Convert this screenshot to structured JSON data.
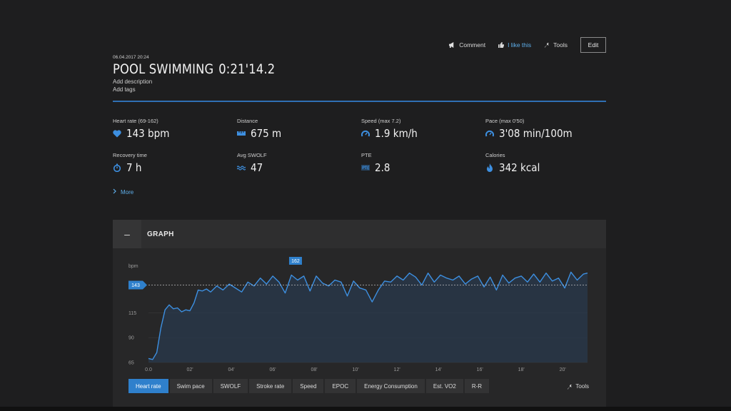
{
  "header": {
    "actions": {
      "comment": "Comment",
      "like": "I like this",
      "tools": "Tools",
      "edit": "Edit"
    },
    "date": "06.04.2017 20:24",
    "title": "POOL SWIMMING",
    "duration": "0:21'14.2",
    "add_description": "Add description",
    "add_tags": "Add tags"
  },
  "stats": [
    {
      "label": "Heart rate  (69-162)",
      "value": "143 bpm",
      "icon": "heart-icon"
    },
    {
      "label": "Distance",
      "value": "675 m",
      "icon": "ruler-icon"
    },
    {
      "label": "Speed  (max  7.2)",
      "value": "1.9 km/h",
      "icon": "speedometer-icon"
    },
    {
      "label": "Pace  (max  0'50)",
      "value": "3'08 min/100m",
      "icon": "speedometer-icon"
    },
    {
      "label": "Recovery time",
      "value": "7 h",
      "icon": "stopwatch-icon"
    },
    {
      "label": "Avg SWOLF",
      "value": "47",
      "icon": "waves-icon"
    },
    {
      "label": "PTE",
      "value": "2.8",
      "icon": "pte-icon"
    },
    {
      "label": "Calories",
      "value": "342 kcal",
      "icon": "flame-icon"
    }
  ],
  "more": "More",
  "graph": {
    "title": "GRAPH",
    "collapse": "–",
    "tools": "Tools",
    "tabs": [
      "Heart rate",
      "Swim pace",
      "SWOLF",
      "Stroke rate",
      "Speed",
      "EPOC",
      "Energy Consumption",
      "Est. VO2",
      "R-R"
    ],
    "active_tab": "Heart rate"
  },
  "colors": {
    "accent": "#2f80cc",
    "line": "#3d8fe0",
    "background": "#1e1e1f"
  },
  "chart_data": {
    "type": "line",
    "ylabel": "bpm",
    "yticks": [
      65,
      90,
      115,
      140
    ],
    "ylim": [
      65,
      162
    ],
    "xticks": [
      "0.0",
      "02'",
      "04'",
      "06'",
      "08'",
      "10'",
      "12'",
      "14'",
      "16'",
      "18'",
      "20'"
    ],
    "xlim": [
      0,
      21.2
    ],
    "avg_marker": "143",
    "max_marker": "162",
    "grid": true,
    "series": [
      {
        "x": [
          0,
          0.2,
          0.4,
          0.6,
          0.8,
          1.0,
          1.2,
          1.4,
          1.6,
          1.8,
          2.0,
          2.2,
          2.4,
          2.6,
          2.8,
          3.0,
          3.3,
          3.6,
          3.9,
          4.2,
          4.5,
          4.8,
          5.1,
          5.4,
          5.7,
          6.0,
          6.3,
          6.6,
          6.9,
          7.2,
          7.5,
          7.8,
          8.1,
          8.4,
          8.7,
          9.0,
          9.3,
          9.6,
          9.9,
          10.2,
          10.5,
          10.8,
          11.1,
          11.4,
          11.7,
          12.0,
          12.3,
          12.6,
          12.9,
          13.2,
          13.5,
          13.8,
          14.1,
          14.4,
          14.7,
          15.0,
          15.3,
          15.6,
          15.9,
          16.2,
          16.5,
          16.8,
          17.1,
          17.4,
          17.7,
          18.0,
          18.3,
          18.6,
          18.9,
          19.2,
          19.5,
          19.8,
          20.1,
          20.4,
          20.7,
          21.0,
          21.2
        ],
        "y": [
          69,
          68,
          75,
          100,
          118,
          123,
          119,
          120,
          116,
          118,
          117,
          125,
          138,
          137,
          139,
          136,
          142,
          138,
          144,
          140,
          136,
          146,
          142,
          150,
          144,
          152,
          146,
          135,
          153,
          148,
          152,
          137,
          152,
          145,
          142,
          148,
          146,
          132,
          147,
          140,
          138,
          126,
          138,
          147,
          146,
          152,
          148,
          155,
          151,
          143,
          155,
          146,
          153,
          150,
          148,
          152,
          144,
          149,
          152,
          141,
          151,
          138,
          153,
          145,
          150,
          152,
          146,
          154,
          146,
          155,
          147,
          150,
          140,
          156,
          148,
          154,
          155
        ]
      }
    ]
  }
}
